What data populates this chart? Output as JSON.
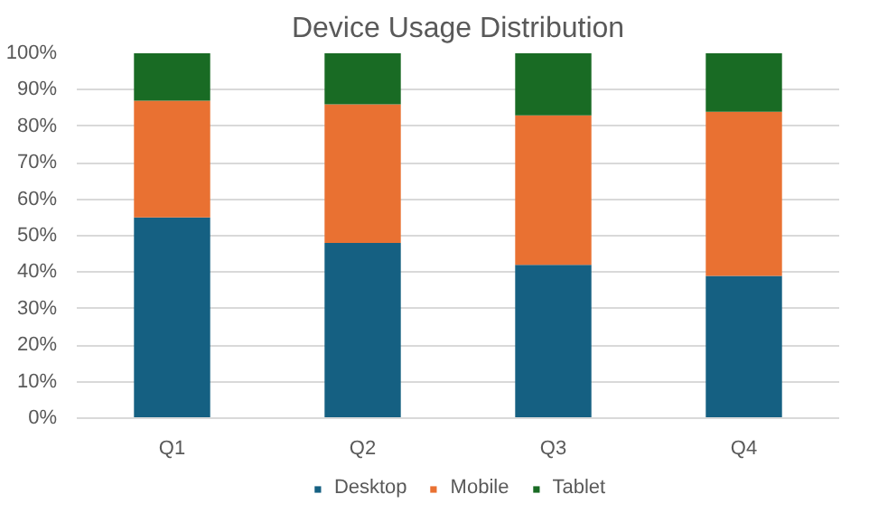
{
  "chart_data": {
    "type": "bar",
    "stacked": true,
    "title": "Device Usage Distribution",
    "categories": [
      "Q1",
      "Q2",
      "Q3",
      "Q4"
    ],
    "series": [
      {
        "name": "Desktop",
        "color": "#156082",
        "values": [
          55,
          48,
          42,
          39
        ]
      },
      {
        "name": "Mobile",
        "color": "#e97132",
        "values": [
          32,
          38,
          41,
          45
        ]
      },
      {
        "name": "Tablet",
        "color": "#196b24",
        "values": [
          13,
          14,
          17,
          16
        ]
      }
    ],
    "ylim": [
      0,
      100
    ],
    "yticks": [
      {
        "value": 0,
        "label": "0%"
      },
      {
        "value": 10,
        "label": "10%"
      },
      {
        "value": 20,
        "label": "20%"
      },
      {
        "value": 30,
        "label": "30%"
      },
      {
        "value": 40,
        "label": "40%"
      },
      {
        "value": 50,
        "label": "50%"
      },
      {
        "value": 60,
        "label": "60%"
      },
      {
        "value": 70,
        "label": "70%"
      },
      {
        "value": 80,
        "label": "80%"
      },
      {
        "value": 90,
        "label": "90%"
      },
      {
        "value": 100,
        "label": "100%"
      }
    ],
    "grid": "y",
    "legend": "bottom"
  }
}
